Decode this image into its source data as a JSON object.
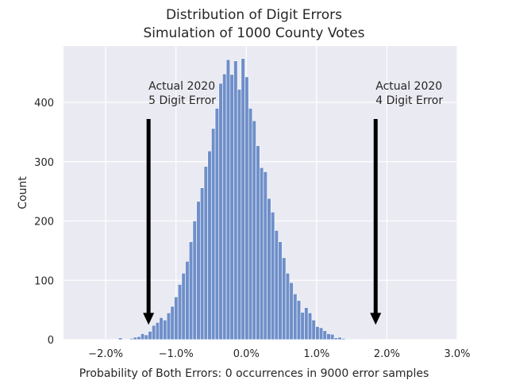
{
  "chart_data": {
    "type": "bar",
    "title": "Distribution of Digit Errors",
    "subtitle": "Simulation of 1000 County Votes",
    "xlabel": "Probability of Both Errors: 0 occurrences in 9000 error samples",
    "ylabel": "Count",
    "xlim": [
      -2.6,
      3.0
    ],
    "ylim": [
      0,
      495
    ],
    "grid": true,
    "x_ticks": [
      {
        "value": -2.0,
        "label": "−2.0%"
      },
      {
        "value": -1.0,
        "label": "−1.0%"
      },
      {
        "value": 0.0,
        "label": "0.0%"
      },
      {
        "value": 1.0,
        "label": "1.0%"
      },
      {
        "value": 2.0,
        "label": "2.0%"
      },
      {
        "value": 3.0,
        "label": "3.0%"
      }
    ],
    "y_ticks": [
      {
        "value": 0,
        "label": "0"
      },
      {
        "value": 100,
        "label": "100"
      },
      {
        "value": 200,
        "label": "200"
      },
      {
        "value": 300,
        "label": "300"
      },
      {
        "value": 400,
        "label": "400"
      }
    ],
    "bar_color": "#6f8fc9",
    "bins": {
      "start": -2.03,
      "width": 0.0529,
      "counts": [
        1,
        1,
        0,
        0,
        3,
        1,
        0,
        2,
        4,
        5,
        10,
        8,
        14,
        24,
        29,
        37,
        33,
        45,
        56,
        72,
        93,
        112,
        132,
        165,
        200,
        233,
        256,
        292,
        318,
        356,
        390,
        432,
        448,
        472,
        447,
        470,
        422,
        474,
        443,
        390,
        369,
        327,
        290,
        283,
        238,
        215,
        184,
        165,
        138,
        112,
        96,
        77,
        66,
        46,
        54,
        45,
        33,
        22,
        20,
        15,
        10,
        9,
        3,
        4,
        2,
        1,
        1,
        0,
        0,
        1
      ]
    },
    "annotations": [
      {
        "label_line1": "Actual 2020",
        "label_line2": "5 Digit Error",
        "x": -1.39,
        "y_from": 372,
        "y_to": 25
      },
      {
        "label_line1": "Actual 2020",
        "label_line2": "4 Digit Error",
        "x": 1.84,
        "y_from": 372,
        "y_to": 25
      }
    ],
    "colors": {
      "plot_bg": "#eaeaf2",
      "grid": "#ffffff",
      "arrow": "#000000",
      "text": "#262626"
    }
  }
}
